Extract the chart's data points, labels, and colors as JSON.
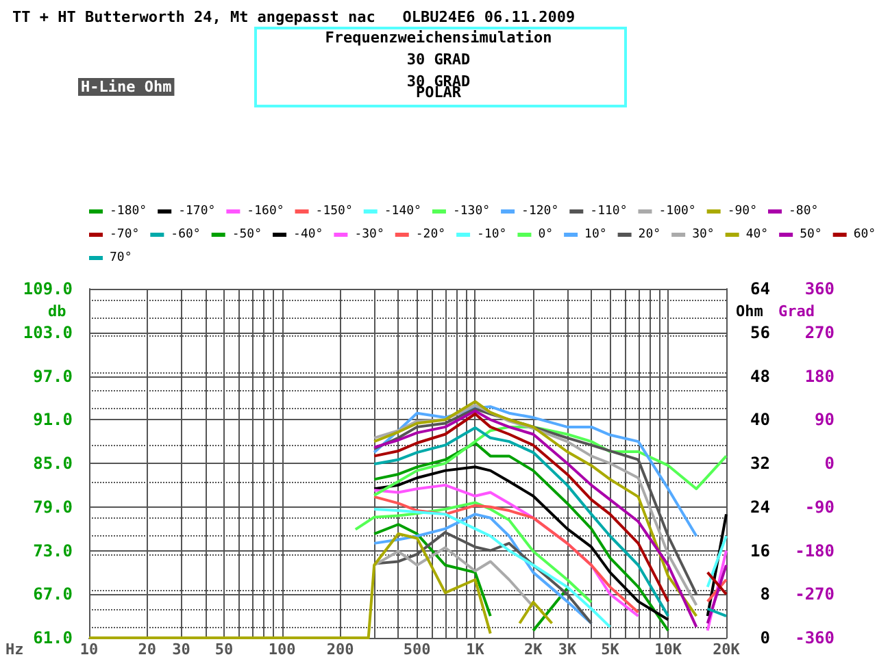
{
  "chart_data": {
    "type": "line",
    "title": "TT + HT Butterworth 24, Mt angepasst nac   OLBU24E6 06.11.2009",
    "subtitle": "Frequenzweichensimulation",
    "annotations": [
      "30 GRAD",
      "30 GRAD",
      "POLAR",
      "H-Line Ohm"
    ],
    "xlabel": "Hz",
    "ylabel": "db",
    "y2label": "Ohm",
    "y3label": "Grad",
    "log": "x",
    "grid": true,
    "legend": "top",
    "marker": "none",
    "xlim": [
      10,
      20000
    ],
    "xticks": [
      10,
      20,
      30,
      {
        "value": 40,
        "label": null
      },
      50,
      {
        "value": 60,
        "label": null
      },
      {
        "value": 70,
        "label": null
      },
      {
        "value": 80,
        "label": null
      },
      {
        "value": 90,
        "label": null
      },
      100,
      200,
      {
        "value": 300,
        "label": null
      },
      {
        "value": 400,
        "label": null
      },
      500,
      {
        "value": 600,
        "label": null
      },
      {
        "value": 700,
        "label": null
      },
      {
        "value": 800,
        "label": null
      },
      {
        "value": 900,
        "label": null
      },
      {
        "value": 1000,
        "label": "1K"
      },
      {
        "value": 2000,
        "label": "2K"
      },
      {
        "value": 3000,
        "label": "3K"
      },
      {
        "value": 4000,
        "label": null
      },
      {
        "value": 5000,
        "label": "5K"
      },
      {
        "value": 6000,
        "label": null
      },
      {
        "value": 7000,
        "label": null
      },
      {
        "value": 8000,
        "label": null
      },
      {
        "value": 9000,
        "label": null
      },
      {
        "value": 10000,
        "label": "10K"
      },
      {
        "value": 20000,
        "label": "20K"
      }
    ],
    "ylim": [
      61,
      109
    ],
    "yticks": [
      {
        "value": 61,
        "label": "61.0"
      },
      {
        "value": 67,
        "label": "67.0"
      },
      {
        "value": 73,
        "label": "73.0"
      },
      {
        "value": 79,
        "label": "79.0"
      },
      {
        "value": 85,
        "label": "85.0"
      },
      {
        "value": 91,
        "label": "91.0"
      },
      {
        "value": 97,
        "label": "97.0"
      },
      {
        "value": 103,
        "label": "103.0"
      },
      {
        "value": 109,
        "label": "109.0"
      }
    ],
    "y2lim": [
      0,
      64
    ],
    "y2ticks": [
      0,
      8,
      16,
      24,
      32,
      40,
      48,
      56,
      64
    ],
    "y3lim": [
      -360,
      360
    ],
    "y3ticks": [
      -360,
      -270,
      -180,
      -90,
      0,
      90,
      180,
      270,
      360
    ],
    "x": [
      300,
      400,
      500,
      700,
      1000,
      1200,
      1500,
      2000,
      3000,
      4000,
      5000,
      7000,
      10000,
      14000,
      20000
    ],
    "series": [
      {
        "name": "-180°",
        "color": "#00a000",
        "values": [
          75.3,
          76.6,
          75.3,
          71,
          70,
          64,
          null,
          62,
          67.8,
          null,
          null,
          null,
          null,
          null,
          null
        ]
      },
      {
        "name": "-170°",
        "color": "#000000",
        "x": [
          16000,
          20000
        ],
        "values": [
          64,
          78
        ]
      },
      {
        "name": "-160°",
        "color": "#ff55ff",
        "x": [
          16000,
          20000
        ],
        "values": [
          62,
          73
        ]
      },
      {
        "name": "-150°",
        "color": "#ff5555",
        "x": [
          16000,
          20000
        ],
        "values": [
          66,
          69
        ]
      },
      {
        "name": "-140°",
        "color": "#55ffff",
        "x": [
          16000,
          20000
        ],
        "values": [
          68,
          75
        ]
      },
      {
        "name": "-130°",
        "color": "#55ff55",
        "x": [
          240,
          300,
          400,
          500,
          700,
          1000,
          1200,
          1500,
          2000,
          3000,
          4000
        ],
        "values": [
          75.9,
          77.6,
          77.8,
          78.1,
          78.7,
          79.6,
          78.7,
          77.2,
          72.9,
          69,
          65.9
        ]
      },
      {
        "name": "-120°",
        "color": "#55aaff",
        "values": [
          74,
          74.5,
          75,
          76,
          78,
          77.5,
          75,
          70,
          66,
          63,
          null,
          null,
          null,
          null,
          null
        ]
      },
      {
        "name": "-110°",
        "color": "#555555",
        "values": [
          71.2,
          71.5,
          72.5,
          75.5,
          73.5,
          73,
          74,
          71,
          67,
          63,
          null,
          null,
          null,
          null,
          null
        ]
      },
      {
        "name": "-100°",
        "color": "#aaaaaa",
        "values": [
          71,
          72.9,
          71,
          73.4,
          70.2,
          71.5,
          69,
          65.3,
          null,
          null,
          null,
          null,
          null,
          null,
          null
        ]
      },
      {
        "name": "-90°",
        "color": "#aaaa00",
        "x": [
          10,
          280,
          300,
          400,
          500,
          700,
          1000,
          1200,
          1500,
          1700,
          2000,
          2500
        ],
        "values": [
          61,
          61,
          71,
          75.3,
          74.7,
          67.2,
          69,
          61.6,
          null,
          63,
          65.9,
          63
        ]
      },
      {
        "name": "-80°",
        "color": "#aa00aa",
        "x": [
          16000,
          20000
        ],
        "values": [
          63,
          71
        ]
      },
      {
        "name": "-70°",
        "color": "#aa0000",
        "x": [
          16000,
          20000
        ],
        "values": [
          70,
          67
        ]
      },
      {
        "name": "-60°",
        "color": "#00aaaa",
        "x": [
          16000,
          20000
        ],
        "values": [
          65,
          64
        ]
      },
      {
        "name": "-50°",
        "color": "#00a000",
        "values": [
          82.8,
          83.5,
          84.5,
          85.5,
          87.8,
          86,
          86,
          84,
          79.5,
          76,
          72,
          68,
          62,
          null,
          null
        ]
      },
      {
        "name": "-40°",
        "color": "#000000",
        "values": [
          81.5,
          82,
          83,
          84,
          84.5,
          84,
          82.5,
          80.5,
          76,
          73.5,
          70,
          66,
          63.5,
          null,
          null
        ]
      },
      {
        "name": "-30°",
        "color": "#ff55ff",
        "values": [
          81.3,
          81,
          81.5,
          82,
          80.5,
          81,
          79.5,
          77.5,
          74,
          71,
          67,
          64,
          null,
          null,
          null
        ]
      },
      {
        "name": "-20°",
        "color": "#ff5555",
        "values": [
          80.4,
          79.5,
          78.5,
          78,
          79.2,
          79,
          78.5,
          77.5,
          74,
          71,
          68,
          64.5,
          null,
          null,
          null
        ]
      },
      {
        "name": "-10°",
        "color": "#55ffff",
        "values": [
          78.7,
          78.5,
          78.3,
          78,
          76,
          75,
          73,
          71,
          68,
          65,
          62.5,
          null,
          null,
          null,
          null
        ]
      },
      {
        "name": "0°",
        "color": "#55ff55",
        "values": [
          80.6,
          82.5,
          84,
          85,
          88,
          89.5,
          90,
          90,
          89,
          88,
          86.6,
          86.6,
          84.7,
          81.5,
          86
        ]
      },
      {
        "name": "10°",
        "color": "#55aaff",
        "values": [
          86.5,
          89.5,
          91.9,
          91.3,
          92.6,
          92.8,
          91.9,
          91.3,
          90,
          90,
          88.9,
          88,
          81.5,
          75,
          null
        ]
      },
      {
        "name": "20°",
        "color": "#555555",
        "values": [
          87,
          88.5,
          90,
          90.5,
          92.5,
          91.8,
          91,
          90,
          88.5,
          87.5,
          86.7,
          85.5,
          75,
          67,
          null
        ]
      },
      {
        "name": "30°",
        "color": "#aaaaaa",
        "values": [
          88.5,
          89.5,
          90.8,
          91,
          93,
          92,
          90.8,
          89.8,
          88,
          86,
          85,
          83,
          72.5,
          65.5,
          null
        ]
      },
      {
        "name": "40°",
        "color": "#aaaa00",
        "values": [
          88,
          89.3,
          90.5,
          91,
          93.5,
          92,
          91,
          90,
          86.6,
          84.7,
          82.8,
          80.4,
          69.5,
          64,
          null
        ]
      },
      {
        "name": "50°",
        "color": "#aa00aa",
        "values": [
          87.2,
          88.2,
          89.2,
          90,
          92.2,
          91,
          90,
          89,
          85,
          82,
          80,
          77,
          71,
          62.5,
          null
        ]
      },
      {
        "name": "60°",
        "color": "#aa0000",
        "values": [
          86,
          86.7,
          87.8,
          89,
          91.8,
          90,
          89,
          87.5,
          83.5,
          80,
          78,
          74,
          66,
          null,
          null
        ]
      },
      {
        "name": "70°",
        "color": "#00aaaa",
        "values": [
          84.9,
          85.5,
          86.5,
          87.5,
          89.9,
          88.5,
          88,
          86.5,
          82,
          78,
          75,
          71,
          64,
          null,
          null
        ]
      }
    ]
  }
}
